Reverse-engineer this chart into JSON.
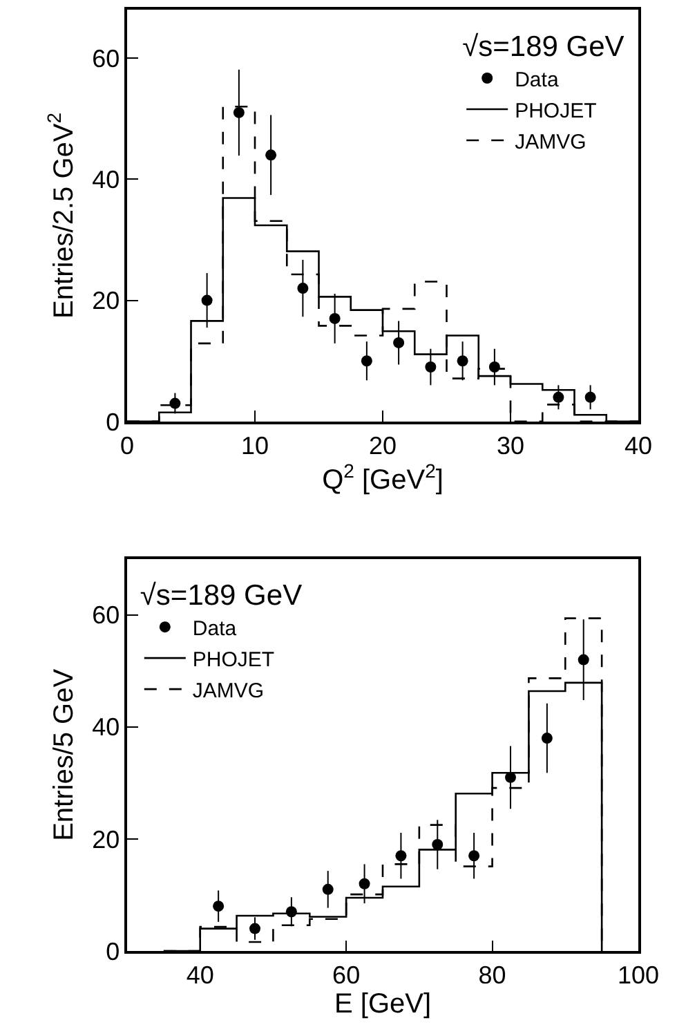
{
  "chart_data": [
    {
      "type": "step",
      "xlabel": "Q$^{2}$ [GeV$^{2}$]",
      "ylabel": "Entries/2.5 GeV$^{2}$",
      "legend_title": "√s=189 GeV",
      "legend": "top right",
      "grid": false,
      "xlim": [
        0,
        40
      ],
      "xticks": [
        0,
        10,
        20,
        30,
        40
      ],
      "ylim": [
        0,
        68
      ],
      "yticks": [
        0,
        20,
        40,
        60
      ],
      "series": [
        {
          "name": "Data",
          "type": "scatter",
          "color": "#000000",
          "marker": "circle",
          "x": [
            3.75,
            6.25,
            8.75,
            11.25,
            13.75,
            16.25,
            18.75,
            21.25,
            23.75,
            26.25,
            28.75,
            33.75,
            36.25
          ],
          "values": [
            3,
            20,
            51,
            44,
            22,
            17,
            10,
            13,
            9,
            10,
            9,
            4,
            4
          ],
          "errors": [
            1.7,
            4.5,
            7.1,
            6.6,
            4.7,
            4.1,
            3.2,
            3.6,
            3,
            3.2,
            3,
            2,
            2
          ]
        },
        {
          "name": "PHOJET",
          "color": "#000000",
          "line_style": "solid",
          "x": [
            0,
            2.5,
            5,
            7.5,
            10,
            12.5,
            15,
            17.5,
            20,
            22.5,
            25,
            27.5,
            30,
            32.5,
            35,
            37.5,
            40
          ],
          "values": [
            0,
            1.5,
            16.6,
            36.9,
            32.4,
            28.1,
            20.6,
            18.4,
            14.9,
            11.1,
            14.2,
            7.5,
            6.2,
            5.2,
            1.1,
            0,
            0
          ]
        },
        {
          "name": "JAMVG",
          "color": "#000000",
          "line_style": "dashed",
          "x": [
            0,
            2.5,
            5,
            7.5,
            10,
            12.5,
            15,
            17.5,
            20,
            22.5,
            25,
            27.5,
            30,
            32.5,
            35,
            37.5,
            40
          ],
          "values": [
            0,
            2.7,
            12.9,
            52,
            33.1,
            24.3,
            15.8,
            14.2,
            18.6,
            23.1,
            7.1,
            8.7,
            0,
            2.8,
            0,
            0,
            0
          ]
        }
      ]
    },
    {
      "type": "step",
      "xlabel": "E [GeV]",
      "ylabel": "Entries/5 GeV",
      "legend_title": "√s=189 GeV",
      "legend": "top left",
      "grid": false,
      "xlim": [
        30,
        100
      ],
      "xticks": [
        40,
        60,
        80,
        100
      ],
      "ylim": [
        0,
        70
      ],
      "yticks": [
        0,
        20,
        40,
        60
      ],
      "series": [
        {
          "name": "Data",
          "type": "scatter",
          "color": "#000000",
          "marker": "circle",
          "x": [
            42.5,
            47.5,
            52.5,
            57.5,
            62.5,
            67.5,
            72.5,
            77.5,
            82.5,
            87.5,
            92.5
          ],
          "values": [
            8,
            4,
            7,
            11,
            12,
            17,
            19,
            17,
            31,
            38,
            52
          ],
          "errors": [
            2.8,
            2,
            2.6,
            3.3,
            3.5,
            4.1,
            4.4,
            4.1,
            5.6,
            6.2,
            7.2
          ]
        },
        {
          "name": "PHOJET",
          "color": "#000000",
          "line_style": "solid",
          "x": [
            35,
            40,
            45,
            50,
            55,
            60,
            65,
            70,
            75,
            80,
            85,
            90,
            95
          ],
          "values": [
            0,
            4,
            6.3,
            6.7,
            6.1,
            9.5,
            11.5,
            18.1,
            28.1,
            31.8,
            46.4,
            47.9,
            0
          ]
        },
        {
          "name": "JAMVG",
          "color": "#000000",
          "line_style": "dashed",
          "x": [
            35,
            40,
            45,
            50,
            55,
            60,
            65,
            70,
            75,
            80,
            85,
            90,
            95
          ],
          "values": [
            0,
            4.3,
            1.6,
            4.6,
            5.7,
            10.1,
            15.5,
            22.5,
            15.1,
            29.1,
            48.7,
            59.4,
            0
          ]
        }
      ]
    }
  ]
}
